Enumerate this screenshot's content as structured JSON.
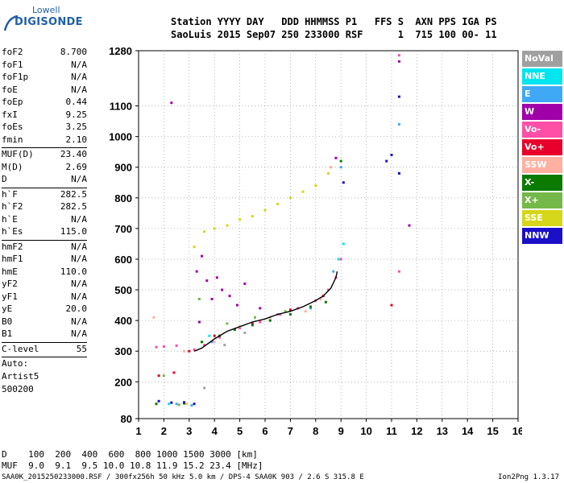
{
  "logo": {
    "top": "Lowell",
    "main": "DIGISONDE"
  },
  "header": {
    "line1": "Station YYYY DAY   DDD HHMMSS P1   FFS S  AXN PPS IGA PS",
    "line2": "SaoLuis 2015 Sep07 250 233000 RSF      1  715 100 00- 11"
  },
  "params": [
    {
      "k": "foF2",
      "v": "8.700"
    },
    {
      "k": "foF1",
      "v": "N/A"
    },
    {
      "k": "foF1p",
      "v": "N/A"
    },
    {
      "k": "foE",
      "v": "N/A"
    },
    {
      "k": "foEp",
      "v": "0.44"
    },
    {
      "k": "fxI",
      "v": "9.25"
    },
    {
      "k": "foEs",
      "v": "3.25"
    },
    {
      "k": "fmin",
      "v": "2.10"
    },
    {
      "sep": true
    },
    {
      "k": "MUF(D)",
      "v": "23.40"
    },
    {
      "k": "M(D)",
      "v": "2.69"
    },
    {
      "k": "D",
      "v": "N/A"
    },
    {
      "sep": true
    },
    {
      "k": "h`F",
      "v": "282.5"
    },
    {
      "k": "h`F2",
      "v": "282.5"
    },
    {
      "k": "h`E",
      "v": "N/A"
    },
    {
      "k": "h`Es",
      "v": "115.0"
    },
    {
      "sep": true
    },
    {
      "k": "hmF2",
      "v": "N/A"
    },
    {
      "k": "hmF1",
      "v": "N/A"
    },
    {
      "k": "hmE",
      "v": "110.0"
    },
    {
      "k": "yF2",
      "v": "N/A"
    },
    {
      "k": "yF1",
      "v": "N/A"
    },
    {
      "k": "yE",
      "v": "20.0"
    },
    {
      "k": "B0",
      "v": "N/A"
    },
    {
      "k": "B1",
      "v": "N/A"
    },
    {
      "sep": true
    },
    {
      "k": "C-level",
      "v": "55"
    },
    {
      "sep": true
    },
    {
      "text": "Auto:"
    },
    {
      "text": "Artist5"
    },
    {
      "text": "500200"
    }
  ],
  "legend": [
    {
      "label": "NoVal",
      "color": "#a0a0a0"
    },
    {
      "label": "NNE",
      "color": "#00e5ee"
    },
    {
      "label": "E",
      "color": "#3fa9f5"
    },
    {
      "label": "W",
      "color": "#a000a8"
    },
    {
      "label": "Vo-",
      "color": "#ff4fa6"
    },
    {
      "label": "Vo+",
      "color": "#e8002a"
    },
    {
      "label": "SSW",
      "color": "#ffb0a0"
    },
    {
      "label": "X-",
      "color": "#0a7a00"
    },
    {
      "label": "X+",
      "color": "#74b84a"
    },
    {
      "label": "SSE",
      "color": "#d6d61a"
    },
    {
      "label": "NNW",
      "color": "#1a10c8"
    }
  ],
  "muf_table": {
    "d_row": "D    100  200  400  600  800 1000 1500 3000 [km]",
    "muf_row": "MUF  9.0  9.1  9.5 10.0 10.8 11.9 15.2 23.4 [MHz]"
  },
  "footer": {
    "left": "SAA0K_2015250233000.RSF / 300fx256h 50 kHz 5.0 km / DPS-4 SAA0K 903 / 2.6 S 315.8 E",
    "right": "Ion2Png 1.3.17"
  },
  "chart_data": {
    "type": "scatter",
    "title": "",
    "xlabel": "",
    "ylabel": "",
    "xlim": [
      1,
      16
    ],
    "ylim": [
      80,
      1280
    ],
    "x_ticks": [
      1,
      2,
      3,
      4,
      5,
      6,
      7,
      8,
      9,
      10,
      11,
      12,
      13,
      14,
      15,
      16
    ],
    "y_ticks": [
      80,
      200,
      300,
      400,
      500,
      600,
      700,
      800,
      900,
      1000,
      1100,
      1280
    ],
    "grid": true,
    "legend_position": "right",
    "trace": {
      "name": "",
      "color": "#000000",
      "points": [
        [
          3.2,
          300
        ],
        [
          3.5,
          310
        ],
        [
          4.0,
          340
        ],
        [
          4.5,
          365
        ],
        [
          5.0,
          380
        ],
        [
          5.5,
          395
        ],
        [
          6.0,
          405
        ],
        [
          6.5,
          420
        ],
        [
          7.0,
          430
        ],
        [
          7.5,
          445
        ],
        [
          8.0,
          465
        ],
        [
          8.3,
          480
        ],
        [
          8.6,
          505
        ],
        [
          8.8,
          540
        ],
        [
          8.85,
          560
        ]
      ]
    },
    "series": [
      {
        "name": "NoVal",
        "color": "#a0a0a0",
        "points": [
          [
            3.6,
            180
          ],
          [
            4.4,
            320
          ],
          [
            5.2,
            360
          ],
          [
            6.5,
            420
          ]
        ]
      },
      {
        "name": "NNE",
        "color": "#00e5ee",
        "points": [
          [
            2.2,
            128
          ],
          [
            3.8,
            350
          ],
          [
            8.9,
            600
          ],
          [
            9.1,
            650
          ],
          [
            11.3,
            880
          ]
        ]
      },
      {
        "name": "E",
        "color": "#3fa9f5",
        "points": [
          [
            2.5,
            128
          ],
          [
            3.1,
            123
          ],
          [
            3.9,
            330
          ],
          [
            7.8,
            440
          ],
          [
            8.7,
            560
          ],
          [
            9.0,
            900
          ],
          [
            11.3,
            1040
          ]
        ]
      },
      {
        "name": "W",
        "color": "#a000a8",
        "points": [
          [
            2.3,
            1110
          ],
          [
            3.3,
            560
          ],
          [
            3.5,
            610
          ],
          [
            3.7,
            530
          ],
          [
            3.9,
            470
          ],
          [
            4.1,
            540
          ],
          [
            4.3,
            500
          ],
          [
            4.6,
            480
          ],
          [
            4.9,
            450
          ],
          [
            5.2,
            520
          ],
          [
            5.8,
            440
          ],
          [
            3.4,
            395
          ],
          [
            8.8,
            930
          ],
          [
            11.3,
            1245
          ],
          [
            11.7,
            710
          ]
        ]
      },
      {
        "name": "Vo-",
        "color": "#ff4fa6",
        "points": [
          [
            1.7,
            313
          ],
          [
            2.0,
            315
          ],
          [
            2.5,
            318
          ],
          [
            3.2,
            305
          ],
          [
            3.6,
            320
          ],
          [
            4.2,
            345
          ],
          [
            5.0,
            375
          ],
          [
            5.8,
            395
          ],
          [
            6.6,
            420
          ],
          [
            7.3,
            440
          ],
          [
            8.0,
            465
          ],
          [
            8.5,
            500
          ],
          [
            8.8,
            540
          ],
          [
            9.0,
            600
          ],
          [
            11.3,
            1265
          ],
          [
            11.3,
            560
          ]
        ]
      },
      {
        "name": "Vo+",
        "color": "#e8002a",
        "points": [
          [
            1.8,
            220
          ],
          [
            2.4,
            230
          ],
          [
            3.0,
            300
          ],
          [
            4.0,
            350
          ],
          [
            5.5,
            390
          ],
          [
            7.0,
            435
          ],
          [
            8.3,
            480
          ],
          [
            11.0,
            450
          ]
        ]
      },
      {
        "name": "SSW",
        "color": "#ffb0a0",
        "points": [
          [
            1.6,
            410
          ],
          [
            2.8,
            300
          ],
          [
            4.0,
            330
          ],
          [
            5.0,
            380
          ],
          [
            6.2,
            410
          ],
          [
            7.6,
            430
          ],
          [
            8.2,
            470
          ],
          [
            8.6,
            900
          ]
        ]
      },
      {
        "name": "X-",
        "color": "#0a7a00",
        "points": [
          [
            1.7,
            128
          ],
          [
            2.8,
            130
          ],
          [
            3.5,
            330
          ],
          [
            4.2,
            350
          ],
          [
            4.8,
            370
          ],
          [
            5.5,
            385
          ],
          [
            6.2,
            400
          ],
          [
            7.0,
            420
          ],
          [
            7.8,
            445
          ],
          [
            8.4,
            460
          ],
          [
            9.0,
            920
          ]
        ]
      },
      {
        "name": "X+",
        "color": "#74b84a",
        "points": [
          [
            2.0,
            220
          ],
          [
            2.6,
            125
          ],
          [
            3.4,
            470
          ],
          [
            4.5,
            390
          ],
          [
            5.6,
            410
          ],
          [
            6.8,
            430
          ]
        ]
      },
      {
        "name": "SSE",
        "color": "#d6d61a",
        "points": [
          [
            3.2,
            640
          ],
          [
            3.6,
            690
          ],
          [
            4.0,
            700
          ],
          [
            4.5,
            710
          ],
          [
            5.0,
            730
          ],
          [
            5.5,
            740
          ],
          [
            6.0,
            760
          ],
          [
            6.5,
            780
          ],
          [
            7.0,
            800
          ],
          [
            7.5,
            820
          ],
          [
            8.0,
            840
          ],
          [
            8.5,
            880
          ],
          [
            2.9,
            128
          ]
        ]
      },
      {
        "name": "NNW",
        "color": "#1a10c8",
        "points": [
          [
            1.8,
            137
          ],
          [
            2.3,
            132
          ],
          [
            2.8,
            133
          ],
          [
            3.2,
            128
          ],
          [
            9.1,
            850
          ],
          [
            10.8,
            920
          ],
          [
            11.0,
            940
          ],
          [
            11.3,
            1130
          ],
          [
            11.3,
            880
          ]
        ]
      }
    ]
  }
}
